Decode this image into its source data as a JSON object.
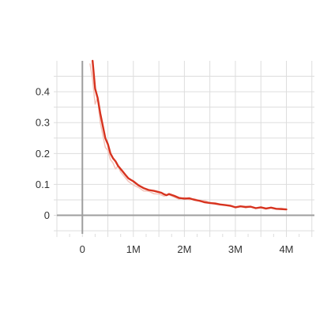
{
  "chart_data": {
    "type": "line",
    "title": "",
    "xlabel": "",
    "ylabel": "",
    "xlim": [
      -500000,
      4550000
    ],
    "ylim": [
      -0.06,
      0.5
    ],
    "x_ticks": [
      0,
      1000000,
      2000000,
      3000000,
      4000000
    ],
    "x_tick_labels": [
      "0",
      "1M",
      "2M",
      "3M",
      "4M"
    ],
    "y_ticks": [
      0,
      0.1,
      0.2,
      0.3,
      0.4
    ],
    "y_tick_labels": [
      "0",
      "0.1",
      "0.2",
      "0.3",
      "0.4"
    ],
    "grid": true,
    "legend": "none",
    "colors": {
      "smoothed": "#d7331f",
      "raw": "#f3c4bb",
      "grid": "#dddddd",
      "zero_axis": "#9e9e9e",
      "tick_text": "#333333"
    },
    "series": [
      {
        "role": "raw",
        "x": [
          150000,
          200000,
          250000,
          300000,
          350000,
          400000,
          450000,
          500000,
          550000,
          600000,
          650000,
          700000,
          750000,
          800000,
          900000,
          1000000,
          1100000,
          1200000,
          1300000,
          1400000,
          1500000,
          1600000,
          1700000,
          1800000,
          1900000,
          2000000,
          2100000,
          2200000,
          2300000,
          2400000,
          2500000,
          2600000,
          2700000,
          2800000,
          2900000,
          3000000,
          3100000,
          3200000,
          3300000,
          3400000,
          3500000,
          3600000,
          3700000,
          3800000,
          3900000,
          4000000
        ],
        "y": [
          0.49,
          0.44,
          0.36,
          0.38,
          0.3,
          0.26,
          0.22,
          0.21,
          0.18,
          0.17,
          0.15,
          0.16,
          0.14,
          0.13,
          0.11,
          0.098,
          0.09,
          0.079,
          0.078,
          0.07,
          0.069,
          0.062,
          0.066,
          0.059,
          0.052,
          0.058,
          0.05,
          0.054,
          0.046,
          0.048,
          0.04,
          0.041,
          0.036,
          0.033,
          0.029,
          0.027,
          0.03,
          0.024,
          0.028,
          0.022,
          0.025,
          0.02,
          0.024,
          0.021,
          0.023,
          0.019
        ]
      },
      {
        "role": "smoothed",
        "x": [
          200000,
          250000,
          300000,
          350000,
          400000,
          450000,
          500000,
          550000,
          600000,
          650000,
          700000,
          750000,
          800000,
          850000,
          900000,
          950000,
          1000000,
          1100000,
          1200000,
          1300000,
          1400000,
          1500000,
          1550000,
          1600000,
          1650000,
          1700000,
          1800000,
          1900000,
          2000000,
          2100000,
          2200000,
          2300000,
          2400000,
          2500000,
          2600000,
          2700000,
          2800000,
          2900000,
          3000000,
          3100000,
          3200000,
          3300000,
          3400000,
          3500000,
          3600000,
          3700000,
          3800000,
          3900000,
          4000000
        ],
        "y": [
          0.5,
          0.41,
          0.38,
          0.33,
          0.29,
          0.25,
          0.23,
          0.2,
          0.185,
          0.175,
          0.16,
          0.15,
          0.14,
          0.13,
          0.12,
          0.115,
          0.11,
          0.097,
          0.088,
          0.082,
          0.079,
          0.075,
          0.073,
          0.068,
          0.065,
          0.069,
          0.063,
          0.056,
          0.054,
          0.055,
          0.05,
          0.047,
          0.042,
          0.04,
          0.038,
          0.035,
          0.033,
          0.031,
          0.026,
          0.029,
          0.027,
          0.028,
          0.023,
          0.026,
          0.022,
          0.025,
          0.021,
          0.02,
          0.019
        ]
      }
    ]
  }
}
